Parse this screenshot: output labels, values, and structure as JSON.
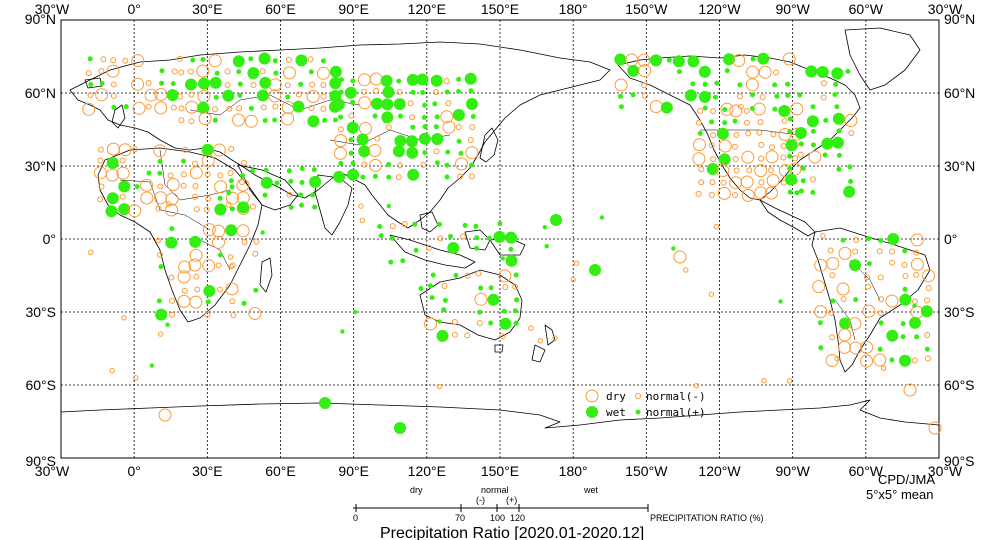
{
  "title": "Precipitation Ratio [2020.01-2020.12]",
  "credit": "CPD/JMA",
  "resolution": "5°x5° mean",
  "lon_labels": [
    "30°W",
    "0°",
    "30°E",
    "60°E",
    "90°E",
    "120°E",
    "150°E",
    "180°",
    "150°W",
    "120°W",
    "90°W",
    "60°W",
    "30°W"
  ],
  "lat_labels": [
    "90°N",
    "60°N",
    "30°N",
    "0°",
    "30°S",
    "60°S",
    "90°S"
  ],
  "legend": {
    "dry": "dry",
    "wet": "wet",
    "normal_minus": "normal(-)",
    "normal_plus": "normal(+)"
  },
  "scale": {
    "dry_label": "dry",
    "normal_label": "normal",
    "minus": "(-)",
    "plus": "(+)",
    "wet_label": "wet",
    "ticks": [
      "0",
      "70",
      "100",
      "120"
    ],
    "unit_label": "PRECIPITATION RATIO  (%)"
  },
  "colors": {
    "dry": "#ff9933",
    "wet": "#33ee11",
    "grid": "#000000"
  }
}
